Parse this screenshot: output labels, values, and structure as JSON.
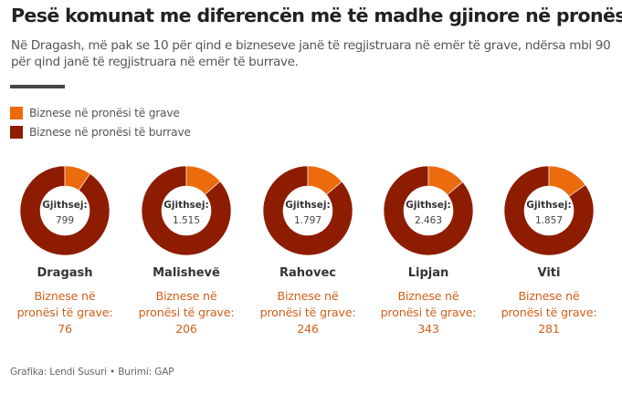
{
  "header": {
    "title": "Pesë komunat me diferencën më të madhe gjinore në pronësi",
    "subtitle": "Në Dragash, më pak se 10 për qind e bizneseve janë të regjistruara në emër të grave, ndërsa mbi 90 për qind janë të regjistruara në emër të burrave."
  },
  "legend": [
    {
      "label": "Biznese në pronësi të grave",
      "color": "#ec6b0c"
    },
    {
      "label": "Biznese në pronësi të burrave",
      "color": "#8e1c00"
    }
  ],
  "footer": "Grafika: Lendi Susuri • Burimi: GAP",
  "chart_data": {
    "type": "pie",
    "variant": "donut",
    "title": "Pesë komunat me diferencën më të madhe gjinore në pronësi",
    "center_label": "Gjithsej:",
    "women_label_line1": "Biznese në",
    "women_label_line2": "pronësi të grave:",
    "series_names": [
      "Biznese në pronësi të grave",
      "Biznese në pronësi të burrave"
    ],
    "colors": {
      "women": "#ec6b0c",
      "men": "#8e1c00"
    },
    "items": [
      {
        "municipality": "Dragash",
        "total": 799,
        "total_label": "799",
        "women": 76,
        "men": 723
      },
      {
        "municipality": "Malishevë",
        "total": 1515,
        "total_label": "1.515",
        "women": 206,
        "men": 1309
      },
      {
        "municipality": "Rahovec",
        "total": 1797,
        "total_label": "1.797",
        "women": 246,
        "men": 1551
      },
      {
        "municipality": "Lipjan",
        "total": 2463,
        "total_label": "2.463",
        "women": 343,
        "men": 2120
      },
      {
        "municipality": "Viti",
        "total": 1857,
        "total_label": "1.857",
        "women": 281,
        "men": 1576
      }
    ]
  }
}
